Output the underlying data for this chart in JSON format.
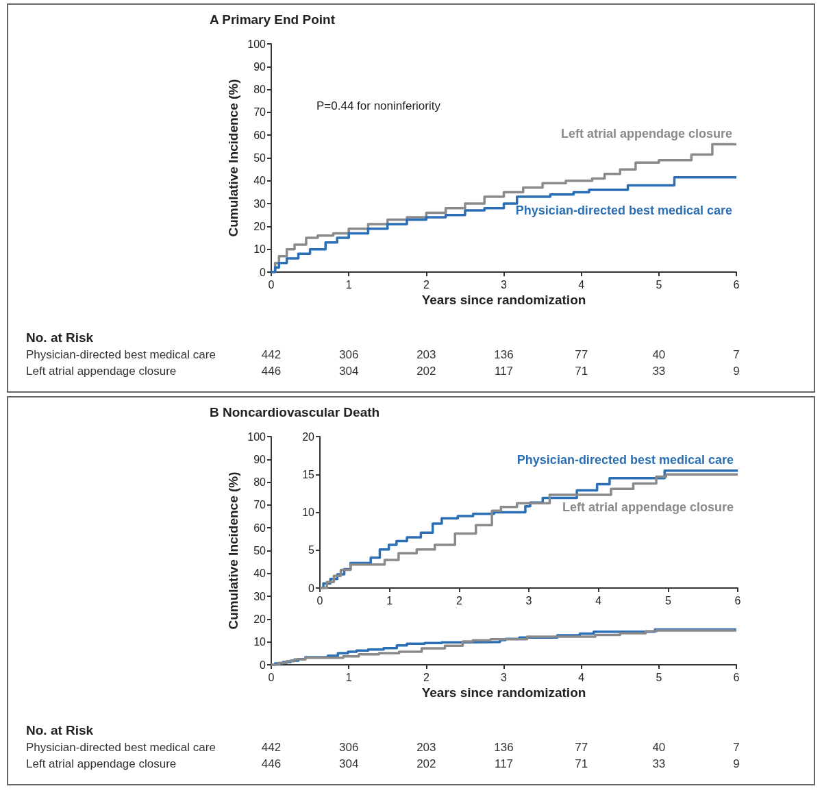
{
  "chart_data": [
    {
      "type": "step",
      "title": "A Primary End Point",
      "xlabel": "Years since randomization",
      "ylabel": "Cumulative Incidence (%)",
      "xlim": [
        0,
        6
      ],
      "xticks": [
        0,
        1,
        2,
        3,
        4,
        5,
        6
      ],
      "ylim": [
        0,
        100
      ],
      "yticks": [
        0,
        10,
        20,
        30,
        40,
        50,
        60,
        70,
        80,
        90,
        100
      ],
      "series": [
        {
          "name": "Left atrial appendage closure",
          "color": "#8a8a8a",
          "x": [
            0,
            0.05,
            0.1,
            0.2,
            0.3,
            0.45,
            0.6,
            0.8,
            1.0,
            1.25,
            1.5,
            1.75,
            2.0,
            2.25,
            2.5,
            2.75,
            3.0,
            3.25,
            3.5,
            3.8,
            4.14,
            4.3,
            4.5,
            4.7,
            5.0,
            5.42,
            5.69,
            6.0
          ],
          "values": [
            0,
            4,
            7,
            10,
            12,
            15,
            16,
            17,
            19,
            21,
            23,
            24,
            26,
            28,
            30,
            33,
            35,
            37,
            39,
            40,
            41,
            43,
            45,
            48,
            49,
            51.5,
            56,
            56
          ]
        },
        {
          "name": "Physician-directed best medical care",
          "color": "#2a6eb5",
          "x": [
            0,
            0.05,
            0.1,
            0.2,
            0.35,
            0.5,
            0.7,
            0.85,
            1.0,
            1.25,
            1.5,
            1.75,
            2.0,
            2.25,
            2.5,
            2.75,
            3.0,
            3.17,
            3.5,
            3.6,
            3.9,
            4.1,
            4.6,
            5.2,
            6.0
          ],
          "values": [
            0,
            2,
            4,
            6,
            8,
            10,
            13,
            15,
            17,
            19,
            21,
            23,
            24,
            25,
            27,
            28,
            30,
            33,
            33,
            34,
            35,
            36,
            38,
            41.5,
            41.5
          ]
        }
      ],
      "annotations": [
        "P=0.44 for noninferiority",
        "No. at Risk",
        "Physician-directed best medical care",
        "442",
        "306",
        "203",
        "136",
        "77",
        "40",
        "7",
        "Left atrial appendage closure",
        "446",
        "304",
        "202",
        "117",
        "71",
        "33",
        "9"
      ]
    },
    {
      "type": "step",
      "title": "B Noncardiovascular Death",
      "xlabel": "Years since randomization",
      "ylabel": "Cumulative Incidence (%)",
      "xlim": [
        0,
        6
      ],
      "xticks": [
        0,
        1,
        2,
        3,
        4,
        5,
        6
      ],
      "ylim": [
        0,
        100
      ],
      "yticks": [
        0,
        10,
        20,
        30,
        40,
        50,
        60,
        70,
        80,
        90,
        100
      ],
      "series": [
        {
          "color": "#2a6eb5",
          "x": [
            0,
            0.05,
            0.15,
            0.25,
            0.35,
            0.44,
            0.73,
            0.86,
            0.99,
            1.1,
            1.25,
            1.45,
            1.62,
            1.75,
            1.98,
            2.2,
            2.5,
            2.95,
            3.02,
            3.2,
            3.69,
            3.98,
            4.16,
            4.95,
            6.0
          ],
          "values": [
            0,
            0.6,
            1.2,
            1.8,
            2.5,
            3.3,
            4.0,
            5.1,
            5.7,
            6.2,
            6.7,
            7.3,
            8.5,
            9.2,
            9.5,
            9.8,
            10.0,
            10.8,
            11.3,
            11.9,
            12.9,
            13.7,
            14.5,
            15.5,
            15.5
          ]
        },
        {
          "color": "#8a8a8a",
          "x": [
            0,
            0.1,
            0.2,
            0.3,
            0.44,
            0.93,
            1.13,
            1.39,
            1.65,
            1.94,
            2.24,
            2.47,
            2.6,
            2.83,
            3.3,
            4.18,
            4.5,
            4.83,
            4.97,
            6.0
          ],
          "values": [
            0,
            0.8,
            1.6,
            2.4,
            3.1,
            3.7,
            4.6,
            5.1,
            5.7,
            7.2,
            8.3,
            10.2,
            10.7,
            11.2,
            12.3,
            13.1,
            13.8,
            14.7,
            15.0,
            15.0
          ]
        }
      ],
      "annotations": [
        "No. at Risk",
        "Physician-directed best medical care",
        "442",
        "306",
        "203",
        "136",
        "77",
        "40",
        "7",
        "Left atrial appendage closure",
        "446",
        "304",
        "202",
        "117",
        "71",
        "33",
        "9"
      ]
    },
    {
      "type": "step",
      "xlim": [
        0,
        6
      ],
      "xticks": [
        0,
        1,
        2,
        3,
        4,
        5,
        6
      ],
      "ylim": [
        0,
        20
      ],
      "yticks": [
        0,
        5,
        10,
        15,
        20
      ],
      "series": [
        {
          "name": "Physician-directed best medical care",
          "color": "#2a6eb5",
          "x": [
            0,
            0.05,
            0.15,
            0.25,
            0.35,
            0.44,
            0.73,
            0.86,
            0.99,
            1.1,
            1.25,
            1.45,
            1.62,
            1.75,
            1.98,
            2.2,
            2.5,
            2.95,
            3.02,
            3.2,
            3.69,
            3.98,
            4.16,
            4.95,
            6.0
          ],
          "values": [
            0,
            0.6,
            1.2,
            1.8,
            2.5,
            3.3,
            4.0,
            5.1,
            5.7,
            6.2,
            6.7,
            7.3,
            8.5,
            9.2,
            9.5,
            9.8,
            10.0,
            10.8,
            11.3,
            11.9,
            12.9,
            13.7,
            14.5,
            15.5,
            15.5
          ]
        },
        {
          "name": "Left atrial appendage closure",
          "color": "#8a8a8a",
          "x": [
            0,
            0.1,
            0.2,
            0.3,
            0.44,
            0.93,
            1.13,
            1.39,
            1.65,
            1.94,
            2.24,
            2.47,
            2.6,
            2.83,
            3.3,
            4.18,
            4.5,
            4.83,
            4.97,
            6.0
          ],
          "values": [
            0,
            0.8,
            1.6,
            2.4,
            3.1,
            3.7,
            4.6,
            5.1,
            5.7,
            7.2,
            8.3,
            10.2,
            10.7,
            11.2,
            12.3,
            13.1,
            13.8,
            14.7,
            15.0,
            15.0
          ]
        }
      ]
    }
  ]
}
